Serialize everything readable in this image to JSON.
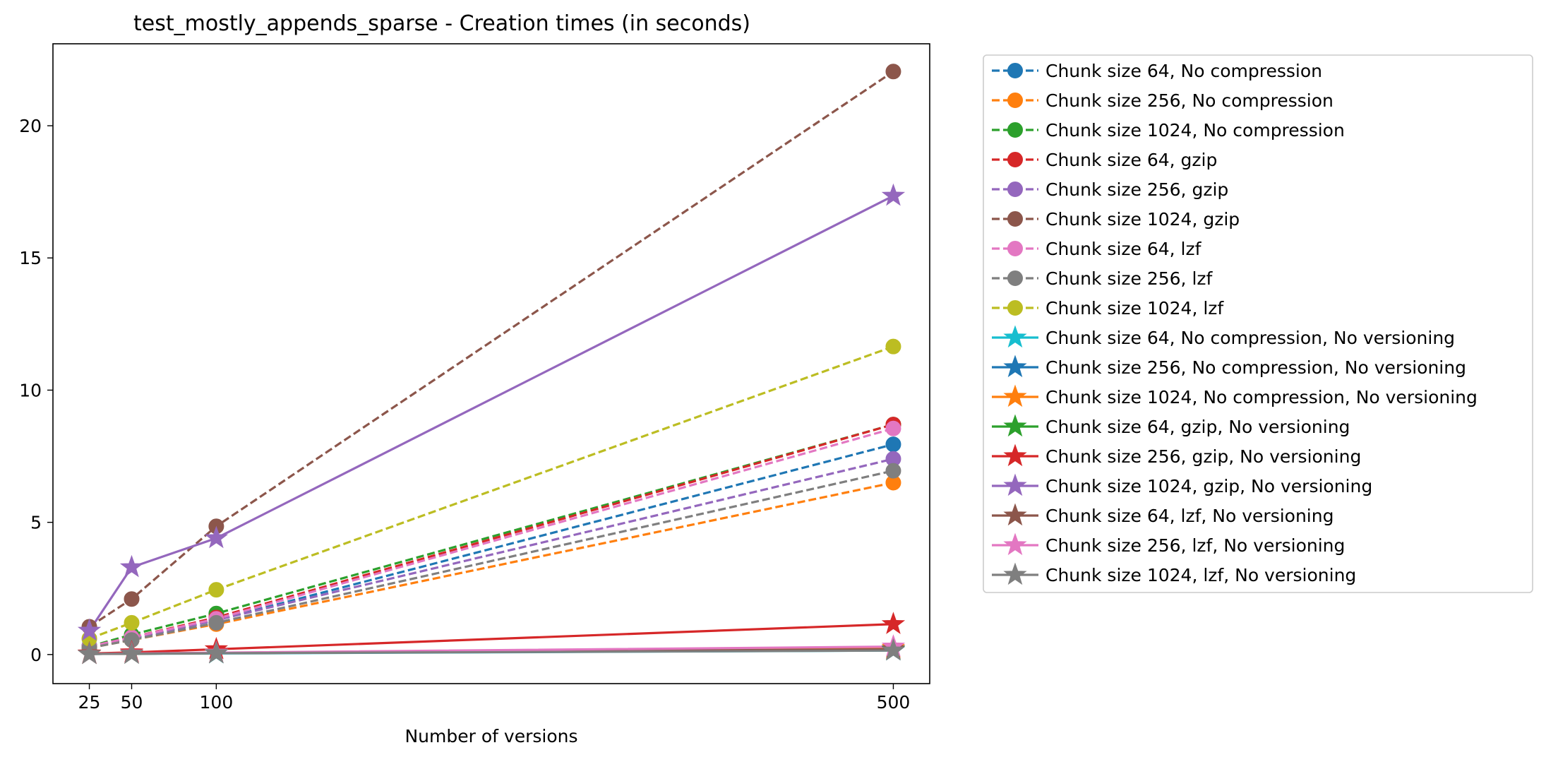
{
  "chart_data": {
    "type": "line",
    "title": "test_mostly_appends_sparse - Creation times (in seconds)",
    "xlabel": "Number of versions",
    "ylabel": "",
    "x": [
      25,
      50,
      100,
      500
    ],
    "xticks": [
      25,
      50,
      100,
      500
    ],
    "yticks": [
      0,
      5,
      10,
      15,
      20
    ],
    "xlim": [
      3.5,
      521.5
    ],
    "ylim": [
      -1.1,
      23.1
    ],
    "grid": false,
    "legend_position": "outside-right",
    "series": [
      {
        "name": "Chunk size 64, No compression",
        "color": "#1f77b4",
        "marker": "circle",
        "dash": true,
        "values": [
          0.33,
          0.6,
          1.3,
          7.95
        ]
      },
      {
        "name": "Chunk size 256, No compression",
        "color": "#ff7f0e",
        "marker": "circle",
        "dash": true,
        "values": [
          0.25,
          0.55,
          1.15,
          6.5
        ]
      },
      {
        "name": "Chunk size 1024, No compression",
        "color": "#2ca02c",
        "marker": "circle",
        "dash": true,
        "values": [
          0.3,
          0.75,
          1.55,
          8.7
        ]
      },
      {
        "name": "Chunk size 64, gzip",
        "color": "#d62728",
        "marker": "circle",
        "dash": true,
        "values": [
          0.3,
          0.65,
          1.4,
          8.7
        ]
      },
      {
        "name": "Chunk size 256, gzip",
        "color": "#9467bd",
        "marker": "circle",
        "dash": true,
        "values": [
          0.3,
          0.6,
          1.3,
          7.4
        ]
      },
      {
        "name": "Chunk size 1024, gzip",
        "color": "#8c564b",
        "marker": "circle",
        "dash": true,
        "values": [
          1.05,
          2.1,
          4.85,
          22.05
        ]
      },
      {
        "name": "Chunk size 64, lzf",
        "color": "#e377c2",
        "marker": "circle",
        "dash": true,
        "values": [
          0.3,
          0.65,
          1.35,
          8.55
        ]
      },
      {
        "name": "Chunk size 256, lzf",
        "color": "#7f7f7f",
        "marker": "circle",
        "dash": true,
        "values": [
          0.25,
          0.55,
          1.2,
          6.95
        ]
      },
      {
        "name": "Chunk size 1024, lzf",
        "color": "#bcbd22",
        "marker": "circle",
        "dash": true,
        "values": [
          0.6,
          1.2,
          2.45,
          11.65
        ]
      },
      {
        "name": "Chunk size 64, No compression, No versioning",
        "color": "#17becf",
        "marker": "star",
        "dash": false,
        "values": [
          0.02,
          0.03,
          0.04,
          0.15
        ]
      },
      {
        "name": "Chunk size 256, No compression, No versioning",
        "color": "#1f77b4",
        "marker": "star",
        "dash": false,
        "values": [
          0.02,
          0.03,
          0.05,
          0.2
        ]
      },
      {
        "name": "Chunk size 1024, No compression, No versioning",
        "color": "#ff7f0e",
        "marker": "star",
        "dash": false,
        "values": [
          0.02,
          0.04,
          0.06,
          0.25
        ]
      },
      {
        "name": "Chunk size 64, gzip, No versioning",
        "color": "#2ca02c",
        "marker": "star",
        "dash": false,
        "values": [
          0.02,
          0.03,
          0.05,
          0.18
        ]
      },
      {
        "name": "Chunk size 256, gzip, No versioning",
        "color": "#d62728",
        "marker": "star",
        "dash": false,
        "values": [
          0.04,
          0.08,
          0.2,
          1.15
        ]
      },
      {
        "name": "Chunk size 1024, gzip, No versioning",
        "color": "#9467bd",
        "marker": "star",
        "dash": false,
        "values": [
          0.9,
          3.3,
          4.4,
          17.35
        ]
      },
      {
        "name": "Chunk size 64, lzf, No versioning",
        "color": "#8c564b",
        "marker": "star",
        "dash": false,
        "values": [
          0.02,
          0.03,
          0.05,
          0.2
        ]
      },
      {
        "name": "Chunk size 256, lzf, No versioning",
        "color": "#e377c2",
        "marker": "star",
        "dash": false,
        "values": [
          0.02,
          0.04,
          0.07,
          0.3
        ]
      },
      {
        "name": "Chunk size 1024, lzf, No versioning",
        "color": "#7f7f7f",
        "marker": "star",
        "dash": false,
        "values": [
          0.02,
          0.03,
          0.05,
          0.15
        ]
      }
    ]
  }
}
